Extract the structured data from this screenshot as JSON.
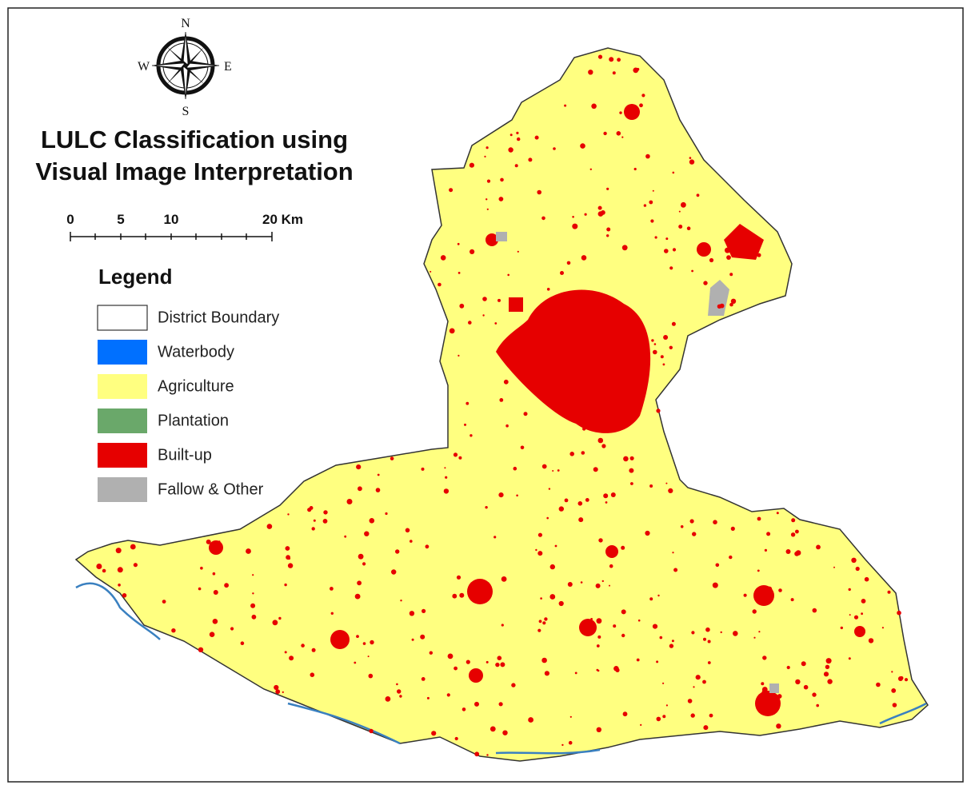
{
  "compass": {
    "north": "N",
    "south": "S",
    "east": "E",
    "west": "W"
  },
  "title": [
    "LULC Classification using",
    "Visual Image Interpretation"
  ],
  "scale_bar": {
    "labels": [
      "0",
      "5",
      "10",
      "20 Km"
    ]
  },
  "legend": {
    "title": "Legend",
    "items": [
      {
        "label": "District Boundary",
        "color": "#ffffff"
      },
      {
        "label": "Waterbody",
        "color": "#0070ff"
      },
      {
        "label": "Agriculture",
        "color": "#ffff80"
      },
      {
        "label": "Plantation",
        "color": "#6aa86a"
      },
      {
        "label": "Built-up",
        "color": "#e60000"
      },
      {
        "label": "Fallow & Other",
        "color": "#b0b0b0"
      }
    ]
  }
}
